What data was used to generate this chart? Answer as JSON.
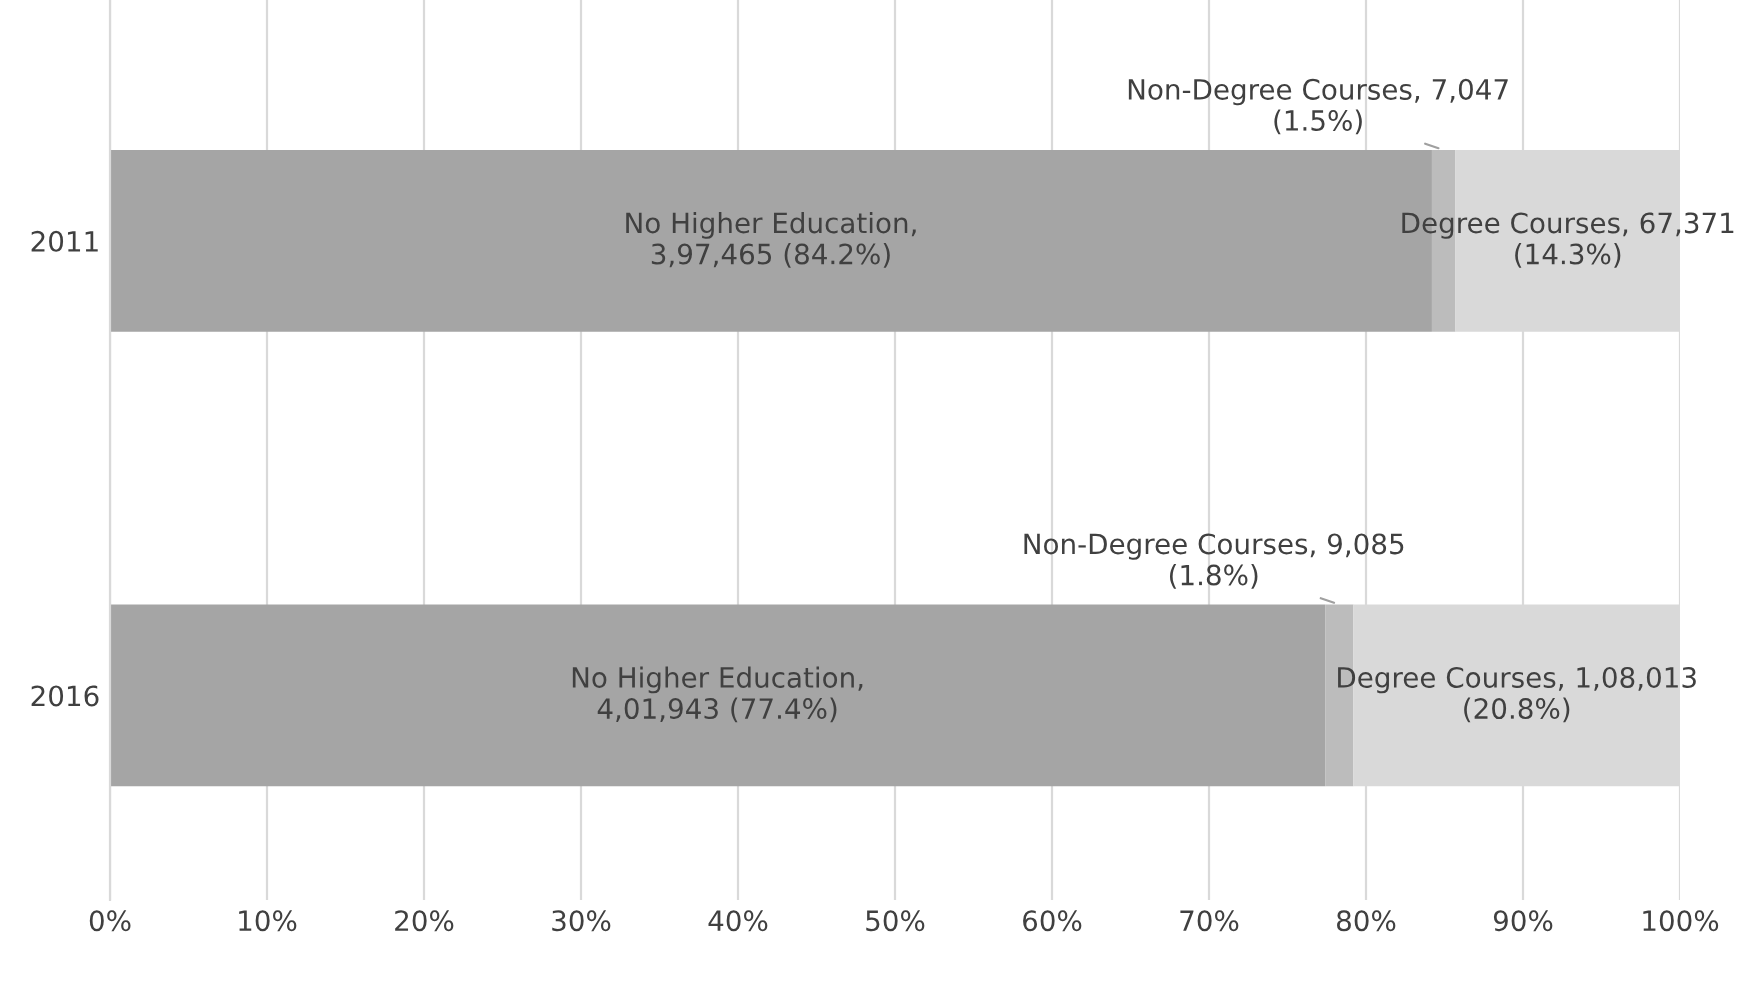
{
  "chart_data": {
    "type": "bar",
    "orientation": "horizontal",
    "stacked": true,
    "categories": [
      "2011",
      "2016"
    ],
    "series": [
      {
        "color": "#a5a5a5",
        "values": [
          84.2,
          77.4
        ],
        "value_labels": [
          "No Higher Education,\n3,97,465 (84.2%)",
          "No Higher Education,\n4,01,943 (77.4%)"
        ]
      },
      {
        "color": "#bcbcbc",
        "values": [
          1.5,
          1.8
        ],
        "value_labels": [
          "Non-Degree Courses, 7,047\n(1.5%)",
          "Non-Degree Courses, 9,085\n(1.8%)"
        ]
      },
      {
        "color": "#d9d9d9",
        "values": [
          14.3,
          20.8
        ],
        "value_labels": [
          "Degree Courses, 67,371\n(14.3%)",
          "Degree Courses, 1,08,013\n(20.8%)"
        ]
      }
    ],
    "xlim": [
      0,
      100
    ],
    "xticks": [
      {
        "value": 0,
        "label": "0%"
      },
      {
        "value": 10,
        "label": "10%"
      },
      {
        "value": 20,
        "label": "20%"
      },
      {
        "value": 30,
        "label": "30%"
      },
      {
        "value": 40,
        "label": "40%"
      },
      {
        "value": 50,
        "label": "50%"
      },
      {
        "value": 60,
        "label": "60%"
      },
      {
        "value": 70,
        "label": "70%"
      },
      {
        "value": 80,
        "label": "80%"
      },
      {
        "value": 90,
        "label": "90%"
      },
      {
        "value": 100,
        "label": "100%"
      }
    ],
    "grid": "x",
    "legend": false
  }
}
